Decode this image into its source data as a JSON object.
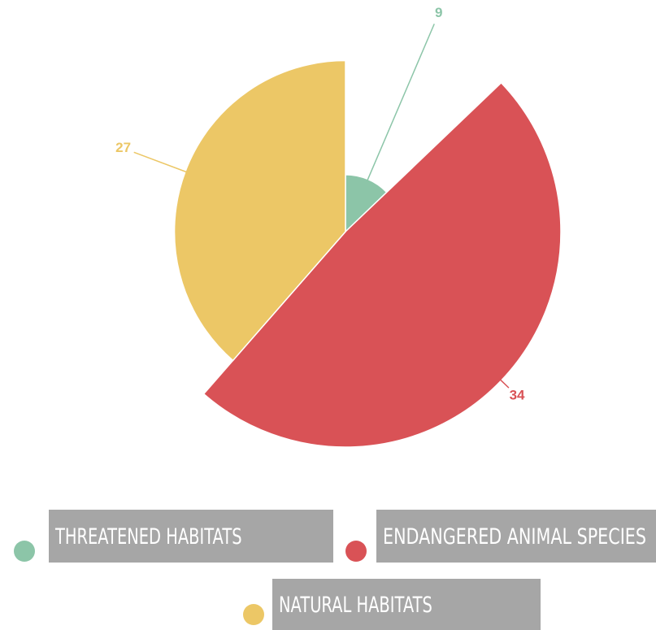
{
  "chart_data": {
    "type": "rose",
    "categories": [
      "THREATENED HABITATS",
      "ENDANGERED ANIMAL SPECIES",
      "NATURAL HABITATS"
    ],
    "values": [
      9,
      34,
      27
    ],
    "colors": [
      "#8cc5a8",
      "#d95256",
      "#ecc766"
    ]
  }
}
